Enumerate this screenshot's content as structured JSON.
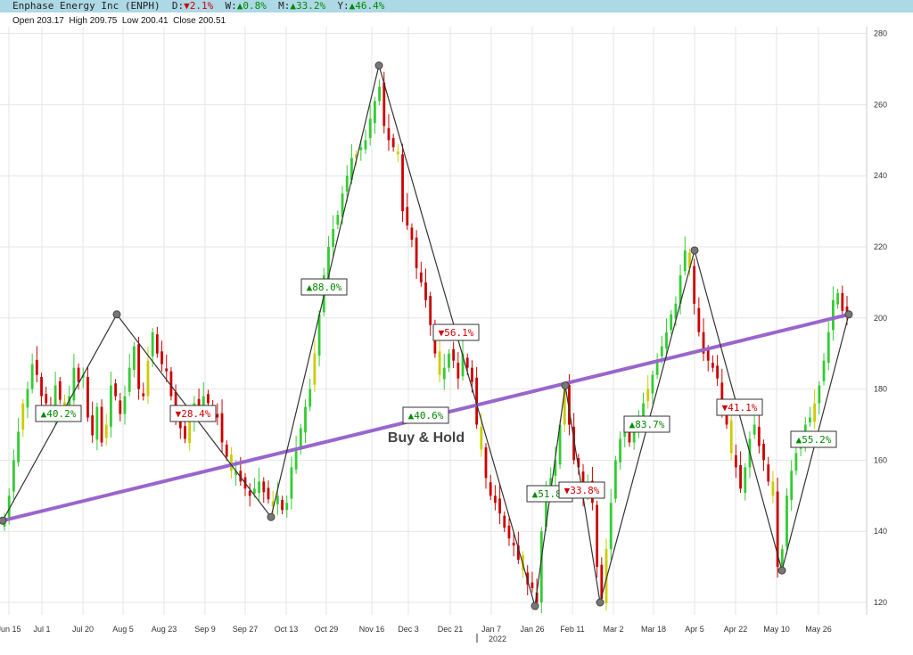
{
  "header": {
    "company": "Enphase Energy Inc (ENPH)",
    "changes": [
      {
        "label": "D:",
        "dir": "down",
        "value": "2.1%"
      },
      {
        "label": "W:",
        "dir": "up",
        "value": "0.8%"
      },
      {
        "label": "M:",
        "dir": "up",
        "value": "33.2%"
      },
      {
        "label": "Y:",
        "dir": "up",
        "value": "46.4%"
      }
    ],
    "ohlc": "Open 203.17  High 209.75  Low 200.41  Close 200.51"
  },
  "colors": {
    "topbar": "#add8e6",
    "up": "#33cc33",
    "down": "#cc0000",
    "neutral": "#cccc00",
    "buyhold": "#9966cc",
    "zigzag": "#333333",
    "grid": "#e6e6e6",
    "label_up": "#008a00",
    "label_down": "#d00000"
  },
  "chart_data": {
    "type": "candlestick",
    "y_ticks": [
      120,
      140,
      160,
      180,
      200,
      220,
      240,
      260,
      280
    ],
    "x_ticks": [
      "Jun 15",
      "Jul 1",
      "Jul 20",
      "Aug 5",
      "Aug 23",
      "Sep 9",
      "Sep 27",
      "Oct 13",
      "Oct 29",
      "Nov 16",
      "Dec 3",
      "Dec 21",
      "Jan 7",
      "Jan 26",
      "Feb 11",
      "Mar 2",
      "Mar 18",
      "Apr 5",
      "Apr 22",
      "May 10",
      "May 26"
    ],
    "year_marker": "2022",
    "candles_close": [
      144,
      150,
      160,
      168,
      176,
      180,
      187,
      184,
      178,
      176,
      173,
      181,
      177,
      174,
      178,
      186,
      182,
      184,
      172,
      167,
      175,
      165,
      170,
      181,
      178,
      173,
      178,
      186,
      192,
      180,
      178,
      188,
      196,
      190,
      187,
      185,
      178,
      172,
      169,
      166,
      171,
      176,
      175,
      178,
      176,
      173,
      172,
      165,
      161,
      157,
      157,
      154,
      152,
      150,
      152,
      154,
      151,
      149,
      147,
      150,
      146,
      148,
      158,
      163,
      169,
      175,
      180,
      190,
      201,
      212,
      220,
      225,
      229,
      235,
      240,
      245,
      246,
      248,
      250,
      256,
      261,
      265,
      254,
      250,
      248,
      246,
      230,
      226,
      222,
      214,
      210,
      205,
      198,
      190,
      184,
      186,
      190,
      188,
      183,
      190,
      186,
      182,
      170,
      163,
      155,
      150,
      148,
      145,
      141,
      138,
      136,
      132,
      129,
      125,
      124,
      120,
      140,
      152,
      155,
      160,
      170,
      180,
      170,
      160,
      158,
      150,
      153,
      148,
      130,
      121,
      135,
      148,
      160,
      166,
      169,
      165,
      168,
      172,
      176,
      180,
      184,
      188,
      192,
      196,
      201,
      204,
      212,
      219,
      214,
      204,
      196,
      190,
      188,
      186,
      183,
      175,
      170,
      162,
      158,
      152,
      158,
      166,
      170,
      164,
      160,
      154,
      150,
      130,
      135,
      150,
      157,
      162,
      166,
      170,
      172,
      176,
      181,
      188,
      196,
      205,
      207,
      202,
      201
    ],
    "zigzag": [
      {
        "date": "Jun 15",
        "value": 143
      },
      {
        "date": "Aug 5",
        "value": 201
      },
      {
        "date": "Sep 27",
        "value": 144
      },
      {
        "date": "Nov 16",
        "value": 271
      },
      {
        "date": "Jan 26",
        "value": 119
      },
      {
        "date": "Feb 11",
        "value": 181
      },
      {
        "date": "Mar 2",
        "value": 120
      },
      {
        "date": "Apr 5",
        "value": 219
      },
      {
        "date": "May 10",
        "value": 129
      },
      {
        "date": "Jun 8",
        "value": 201
      }
    ],
    "buy_hold": {
      "start": 143,
      "end": 201
    },
    "annotations": [
      {
        "text": "▲40.2%",
        "dir": "up"
      },
      {
        "text": "▼28.4%",
        "dir": "down"
      },
      {
        "text": "▲88.0%",
        "dir": "up"
      },
      {
        "text": "▼56.1%",
        "dir": "down"
      },
      {
        "text": "▲40.6%",
        "dir": "up"
      },
      {
        "text": "▲51.8%",
        "dir": "up"
      },
      {
        "text": "▼33.8%",
        "dir": "down"
      },
      {
        "text": "▲83.7%",
        "dir": "up"
      },
      {
        "text": "▼41.1%",
        "dir": "down"
      },
      {
        "text": "▲55.2%",
        "dir": "up"
      }
    ],
    "buy_hold_label": "Buy & Hold"
  }
}
